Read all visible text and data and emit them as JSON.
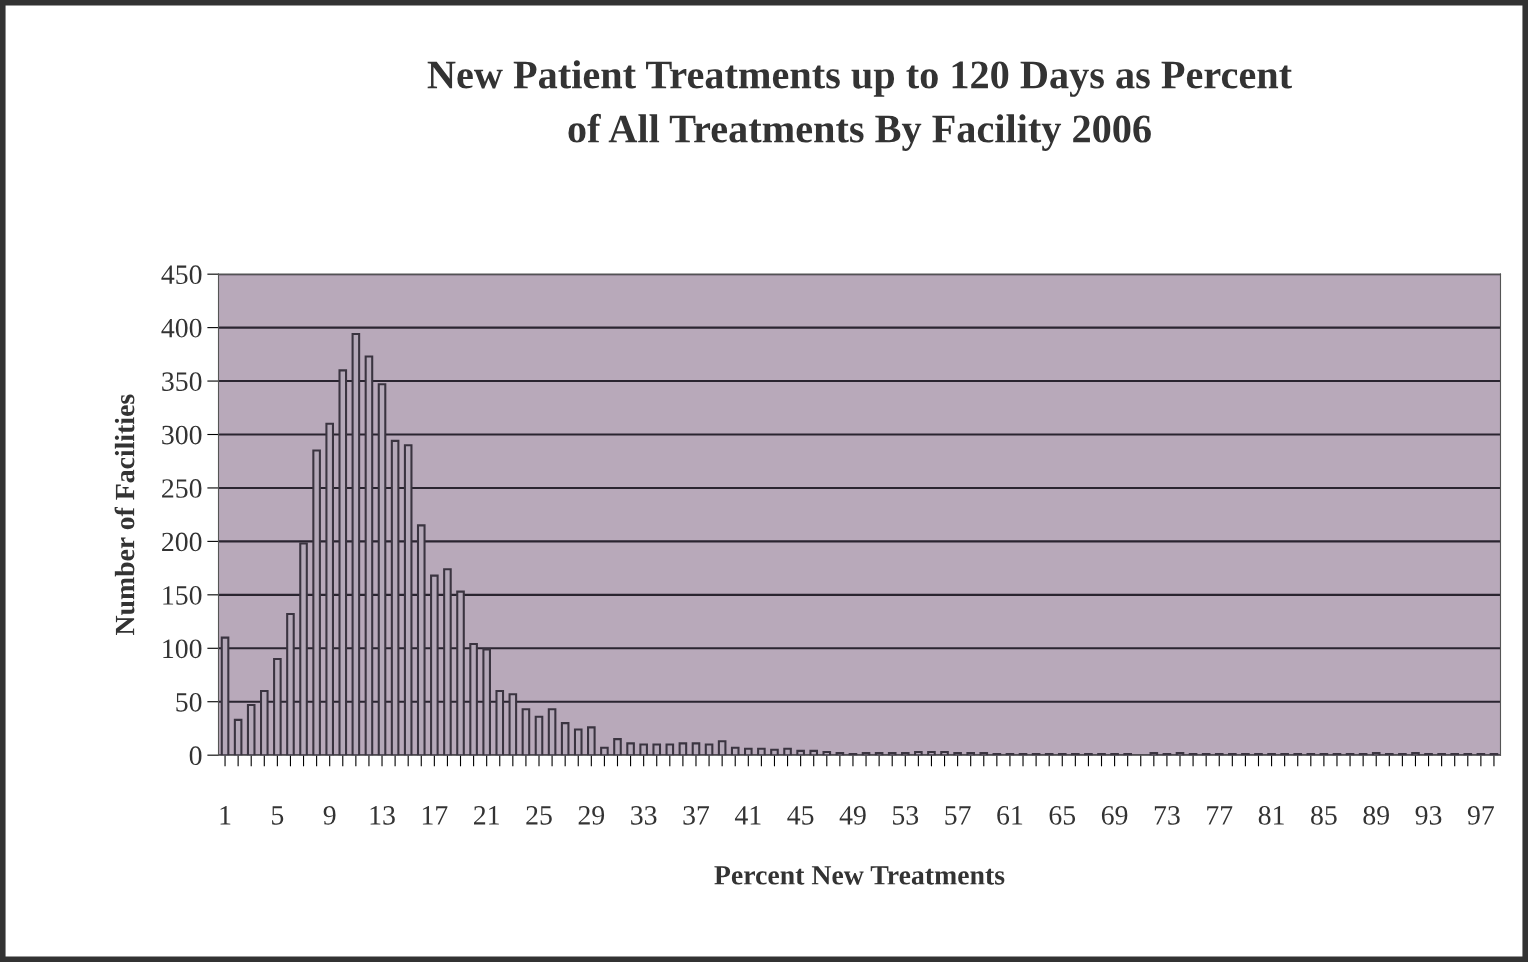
{
  "chart_data": {
    "type": "bar",
    "title": "New Patient Treatments up to 120 Days as Percent\nof All Treatments By Facility 2006",
    "xlabel": "Percent New Treatments",
    "ylabel": "Number of Facilities",
    "categories": [
      "1",
      null,
      null,
      null,
      "5",
      null,
      null,
      null,
      "9",
      null,
      null,
      null,
      "13",
      null,
      null,
      null,
      "17",
      null,
      null,
      null,
      "21",
      null,
      null,
      null,
      "25",
      null,
      null,
      null,
      "29",
      null,
      null,
      null,
      "33",
      null,
      null,
      null,
      "37",
      null,
      null,
      null,
      "41",
      null,
      null,
      null,
      "45",
      null,
      null,
      null,
      "49",
      null,
      null,
      null,
      "53",
      null,
      null,
      null,
      "57",
      null,
      null,
      null,
      "61",
      null,
      null,
      null,
      "65",
      null,
      null,
      null,
      "69",
      null,
      null,
      null,
      "73",
      null,
      null,
      null,
      "77",
      null,
      null,
      null,
      "81",
      null,
      null,
      null,
      "85",
      null,
      null,
      null,
      "89",
      null,
      null,
      null,
      "93",
      null,
      null,
      null,
      "97",
      null
    ],
    "values": [
      110,
      33,
      47,
      60,
      90,
      132,
      198,
      285,
      310,
      360,
      394,
      373,
      347,
      294,
      290,
      215,
      168,
      174,
      153,
      104,
      99,
      60,
      57,
      43,
      36,
      43,
      30,
      24,
      26,
      7,
      15,
      11,
      10,
      10,
      10,
      11,
      11,
      10,
      13,
      7,
      6,
      6,
      5,
      6,
      4,
      4,
      3,
      2,
      1,
      2,
      2,
      2,
      2,
      3,
      3,
      3,
      2,
      2,
      2,
      1,
      1,
      1,
      1,
      1,
      1,
      1,
      1,
      1,
      1,
      1,
      0,
      2,
      1,
      2,
      1,
      1,
      1,
      1,
      1,
      1,
      1,
      1,
      1,
      1,
      1,
      1,
      1,
      1,
      2,
      1,
      1,
      2,
      1,
      1,
      1,
      1,
      1,
      1
    ],
    "color": "#b4a8b8",
    "ylim": [
      0,
      450
    ],
    "yticks": [
      0,
      50,
      100,
      150,
      200,
      250,
      300,
      350,
      400,
      450
    ],
    "grid": "y"
  }
}
